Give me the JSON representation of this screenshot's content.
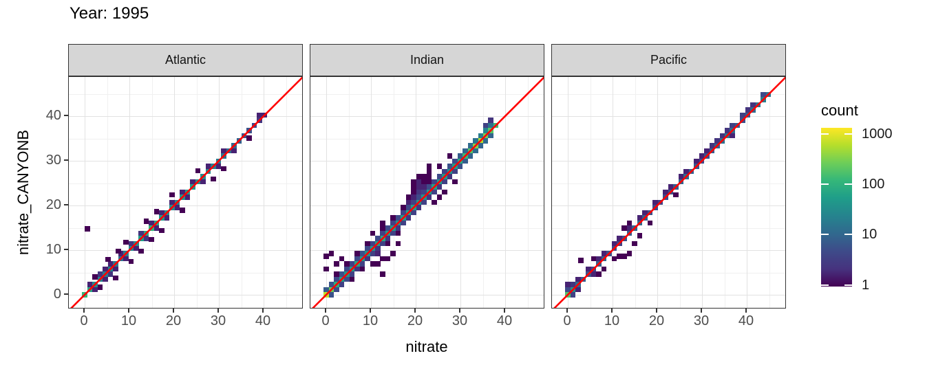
{
  "title": "Year: 1995",
  "axes": {
    "x_label": "nitrate",
    "y_label": "nitrate_CANYONB",
    "x_ticks": [
      0,
      10,
      20,
      30,
      40
    ],
    "y_ticks": [
      0,
      10,
      20,
      30,
      40
    ],
    "minor_ticks": [
      5,
      15,
      25,
      35,
      45
    ]
  },
  "legend": {
    "title": "count",
    "tick_labels": [
      "1000",
      "100",
      "10",
      "1"
    ],
    "tick_values": [
      1000,
      100,
      10,
      1
    ]
  },
  "colors": {
    "reference_line": "#ff0000",
    "strip_bg": "#d6d6d6",
    "panel_border": "#333333",
    "grid_major": "#e2e2e2",
    "grid_minor": "#f0f0f0",
    "axis_text": "#4d4d4d",
    "viridis": [
      "#440154",
      "#482878",
      "#3e4a89",
      "#31688e",
      "#26828e",
      "#1f9e89",
      "#35b779",
      "#6ece58",
      "#b5de2b",
      "#fde725"
    ]
  },
  "chart_data": {
    "type": "heatmap",
    "subtype": "geom_bin2d faceted scatter of nitrate vs nitrate_CANYONB with y=x reference line",
    "title": "Year: 1995",
    "xlabel": "nitrate",
    "ylabel": "nitrate_CANYONB",
    "x_range": [
      -3.5,
      48.9
    ],
    "y_range": [
      -3.2,
      48.6
    ],
    "binwidth": 1.15,
    "count_scale": {
      "type": "log10",
      "domain": [
        1,
        1350
      ],
      "legend_ticks": [
        1,
        10,
        100,
        1000
      ]
    },
    "reference_line": {
      "type": "y=x",
      "color": "#ff0000"
    },
    "facets": [
      {
        "label": "Atlantic",
        "diagonal": {
          "start": 0,
          "step": 1.15,
          "counts": [
            120,
            70,
            35,
            25,
            20,
            28,
            18,
            14,
            22,
            28,
            35,
            55,
            85,
            110,
            75,
            48,
            38,
            32,
            30,
            42,
            55,
            48,
            40,
            34,
            28,
            24,
            20,
            16,
            13,
            11,
            9,
            7,
            6,
            5,
            3,
            2
          ]
        },
        "extra_bins": [
          [
            1.15,
            2.3,
            2
          ],
          [
            2.3,
            1.15,
            2
          ],
          [
            3.45,
            4.6,
            3
          ],
          [
            4.6,
            3.45,
            2
          ],
          [
            4.6,
            5.75,
            2
          ],
          [
            5.75,
            4.6,
            3
          ],
          [
            5.75,
            6.9,
            2
          ],
          [
            6.9,
            5.75,
            2
          ],
          [
            8.05,
            9.2,
            2
          ],
          [
            9.2,
            8.05,
            2
          ],
          [
            10.35,
            11.5,
            3
          ],
          [
            11.5,
            10.35,
            2
          ],
          [
            12.65,
            13.8,
            3
          ],
          [
            13.8,
            12.65,
            3
          ],
          [
            14.95,
            16.1,
            2
          ],
          [
            16.1,
            14.95,
            2
          ],
          [
            17.25,
            18.4,
            2
          ],
          [
            18.4,
            17.25,
            2
          ],
          [
            19.55,
            20.7,
            2
          ],
          [
            20.7,
            19.55,
            2
          ],
          [
            21.85,
            23,
            2
          ],
          [
            23,
            21.85,
            2
          ],
          [
            24.15,
            25.3,
            2
          ],
          [
            26.45,
            25.3,
            2
          ],
          [
            27.6,
            28.75,
            2
          ],
          [
            29.9,
            28.75,
            2
          ],
          [
            31.05,
            32.2,
            2
          ],
          [
            33.35,
            32.2,
            2
          ],
          [
            39.1,
            40.25,
            2
          ],
          [
            0.6,
            14.8,
            1
          ],
          [
            5.2,
            7.9,
            1
          ],
          [
            3.45,
            1.7,
            1
          ],
          [
            6.9,
            3.8,
            1
          ],
          [
            10.35,
            7.5,
            1
          ],
          [
            9.2,
            11.8,
            1
          ],
          [
            13.8,
            16.5,
            1
          ],
          [
            14.95,
            12.4,
            1
          ],
          [
            16.1,
            18.6,
            1
          ],
          [
            19.55,
            22.4,
            1
          ],
          [
            21.85,
            18.9,
            1
          ],
          [
            25.3,
            27.8,
            1
          ],
          [
            28.75,
            25.9,
            1
          ],
          [
            31.05,
            28.2,
            1
          ],
          [
            36.8,
            35.1,
            1
          ],
          [
            2.3,
            4.0,
            1
          ],
          [
            7.5,
            9.8,
            1
          ],
          [
            12.65,
            9.8,
            1
          ],
          [
            17.25,
            14.4,
            1
          ]
        ]
      },
      {
        "label": "Indian",
        "diagonal": {
          "start": 0,
          "step": 1.15,
          "counts": [
            700,
            260,
            90,
            60,
            45,
            55,
            70,
            50,
            40,
            45,
            60,
            75,
            55,
            45,
            40,
            50,
            65,
            55,
            45,
            40,
            50,
            60,
            55,
            45,
            40,
            55,
            90,
            130,
            200,
            350,
            600,
            300,
            200,
            140
          ]
        },
        "extra_bins": [
          [
            0,
            1.15,
            8
          ],
          [
            1.15,
            2.3,
            6
          ],
          [
            2.3,
            3.45,
            5
          ],
          [
            3.45,
            4.6,
            6
          ],
          [
            4.6,
            5.75,
            5
          ],
          [
            5.75,
            6.9,
            4
          ],
          [
            6.9,
            8.05,
            5
          ],
          [
            8.05,
            9.2,
            6
          ],
          [
            9.2,
            10.35,
            5
          ],
          [
            10.35,
            11.5,
            4
          ],
          [
            11.5,
            12.65,
            5
          ],
          [
            12.65,
            13.8,
            4
          ],
          [
            13.8,
            14.95,
            5
          ],
          [
            14.95,
            16.1,
            4
          ],
          [
            16.1,
            17.25,
            5
          ],
          [
            17.25,
            18.4,
            4
          ],
          [
            18.4,
            19.55,
            5
          ],
          [
            19.55,
            20.7,
            4
          ],
          [
            20.7,
            21.85,
            5
          ],
          [
            21.85,
            23,
            4
          ],
          [
            23,
            24.15,
            5
          ],
          [
            24.15,
            25.3,
            4
          ],
          [
            25.3,
            26.45,
            5
          ],
          [
            26.45,
            27.6,
            4
          ],
          [
            27.6,
            28.75,
            6
          ],
          [
            28.75,
            29.9,
            5
          ],
          [
            29.9,
            31.05,
            8
          ],
          [
            31.05,
            32.2,
            10
          ],
          [
            32.2,
            33.35,
            12
          ],
          [
            33.35,
            34.5,
            15
          ],
          [
            34.5,
            35.65,
            20
          ],
          [
            35.65,
            36.8,
            25
          ],
          [
            36.8,
            37.95,
            15
          ],
          [
            1.15,
            0,
            6
          ],
          [
            2.3,
            1.15,
            5
          ],
          [
            3.45,
            2.3,
            4
          ],
          [
            4.6,
            3.45,
            5
          ],
          [
            5.75,
            4.6,
            4
          ],
          [
            6.9,
            5.75,
            3
          ],
          [
            8.05,
            6.9,
            4
          ],
          [
            9.2,
            8.05,
            3
          ],
          [
            10.35,
            9.2,
            4
          ],
          [
            11.5,
            10.35,
            3
          ],
          [
            12.65,
            11.5,
            4
          ],
          [
            13.8,
            12.65,
            3
          ],
          [
            14.95,
            13.8,
            4
          ],
          [
            16.1,
            14.95,
            3
          ],
          [
            17.25,
            16.1,
            4
          ],
          [
            18.4,
            17.25,
            3
          ],
          [
            19.55,
            18.4,
            4
          ],
          [
            20.7,
            19.55,
            3
          ],
          [
            21.85,
            20.7,
            4
          ],
          [
            23,
            21.85,
            3
          ],
          [
            24.15,
            23,
            4
          ],
          [
            25.3,
            24.15,
            3
          ],
          [
            26.45,
            25.3,
            4
          ],
          [
            27.6,
            26.45,
            3
          ],
          [
            28.75,
            27.6,
            4
          ],
          [
            29.9,
            28.75,
            6
          ],
          [
            31.05,
            29.9,
            8
          ],
          [
            32.2,
            31.05,
            10
          ],
          [
            33.35,
            32.2,
            12
          ],
          [
            34.5,
            33.35,
            10
          ],
          [
            35.65,
            34.5,
            12
          ],
          [
            36.8,
            35.65,
            10
          ],
          [
            2.3,
            4.6,
            1
          ],
          [
            4.6,
            6.9,
            1
          ],
          [
            6.9,
            9.2,
            1
          ],
          [
            9.2,
            11.5,
            1
          ],
          [
            5.75,
            3.45,
            1
          ],
          [
            8.05,
            5.75,
            1
          ],
          [
            11.5,
            9.2,
            2
          ],
          [
            13.8,
            11.5,
            1
          ],
          [
            16.1,
            13.8,
            1
          ],
          [
            12.65,
            14.95,
            1
          ],
          [
            14.95,
            17.25,
            1
          ],
          [
            17.25,
            19.55,
            1
          ],
          [
            18.4,
            20.7,
            2
          ],
          [
            19.55,
            21.85,
            2
          ],
          [
            19.55,
            23,
            1
          ],
          [
            20.7,
            23,
            3
          ],
          [
            20.7,
            24.15,
            2
          ],
          [
            21.85,
            24.15,
            2
          ],
          [
            21.85,
            25.3,
            1
          ],
          [
            23,
            25.3,
            1
          ],
          [
            19.55,
            24.15,
            1
          ],
          [
            18.4,
            21.85,
            1
          ],
          [
            23,
            26.45,
            1
          ],
          [
            20.7,
            25.3,
            2
          ],
          [
            21.85,
            26.45,
            1
          ],
          [
            20.7,
            26.45,
            1
          ],
          [
            19.55,
            25.3,
            1
          ],
          [
            23,
            27.6,
            1
          ],
          [
            10.35,
            6.9,
            1
          ],
          [
            12.65,
            4.6,
            1
          ],
          [
            13.8,
            8.05,
            1
          ],
          [
            14.95,
            9.2,
            1
          ],
          [
            16.1,
            11.5,
            1
          ],
          [
            12.65,
            8.05,
            1
          ],
          [
            11.5,
            6.9,
            1
          ],
          [
            24.15,
            20.7,
            1
          ],
          [
            26.45,
            23,
            1
          ],
          [
            28.75,
            25.3,
            1
          ],
          [
            25.3,
            21.85,
            1
          ],
          [
            0,
            8.6,
            1
          ],
          [
            1.15,
            9.2,
            1
          ],
          [
            0,
            5.75,
            1
          ],
          [
            2.3,
            6.9,
            1
          ],
          [
            3.45,
            8.05,
            1
          ],
          [
            12.65,
            16.1,
            1
          ],
          [
            10.35,
            13.8,
            1
          ],
          [
            23,
            28.75,
            1
          ],
          [
            25.3,
            28.75,
            1
          ],
          [
            27.6,
            31.05,
            1
          ],
          [
            35.65,
            37.95,
            4
          ],
          [
            36.8,
            39.1,
            3
          ]
        ]
      },
      {
        "label": "Pacific",
        "diagonal": {
          "start": 0,
          "step": 1.15,
          "counts": [
            180,
            40,
            12,
            8,
            6,
            5,
            8,
            10,
            6,
            5,
            4,
            6,
            8,
            10,
            12,
            8,
            6,
            5,
            4,
            5,
            6,
            8,
            10,
            12,
            9,
            7,
            5,
            6,
            8,
            10,
            14,
            18,
            12,
            8,
            6,
            8,
            12,
            16,
            22,
            15
          ]
        },
        "extra_bins": [
          [
            0,
            1.15,
            5
          ],
          [
            1.15,
            0,
            4
          ],
          [
            1.15,
            2.3,
            3
          ],
          [
            2.3,
            1.15,
            2
          ],
          [
            2.3,
            3.45,
            2
          ],
          [
            4.6,
            5.75,
            2
          ],
          [
            5.75,
            4.6,
            2
          ],
          [
            6.9,
            8.05,
            2
          ],
          [
            8.05,
            9.2,
            2
          ],
          [
            10.35,
            11.5,
            2
          ],
          [
            11.5,
            12.65,
            2
          ],
          [
            13.8,
            14.95,
            2
          ],
          [
            16.1,
            17.25,
            2
          ],
          [
            17.25,
            18.4,
            2
          ],
          [
            19.55,
            20.7,
            2
          ],
          [
            21.85,
            23,
            2
          ],
          [
            23,
            24.15,
            2
          ],
          [
            25.3,
            26.45,
            2
          ],
          [
            26.45,
            27.6,
            2
          ],
          [
            28.75,
            29.9,
            2
          ],
          [
            29.9,
            31.05,
            2
          ],
          [
            31.05,
            32.2,
            2
          ],
          [
            32.2,
            33.35,
            3
          ],
          [
            34.5,
            35.65,
            3
          ],
          [
            35.65,
            36.8,
            3
          ],
          [
            36.8,
            37.95,
            4
          ],
          [
            39.1,
            40.25,
            4
          ],
          [
            40.25,
            41.4,
            3
          ],
          [
            41.4,
            42.55,
            3
          ],
          [
            43.7,
            44.85,
            5
          ],
          [
            2.9,
            7.7,
            1
          ],
          [
            10.35,
            8.05,
            1
          ],
          [
            11.5,
            8.6,
            1
          ],
          [
            12.65,
            8.6,
            1
          ],
          [
            13.8,
            9.2,
            1
          ],
          [
            14.95,
            11.5,
            1
          ],
          [
            5.75,
            8.05,
            1
          ],
          [
            8.05,
            5.75,
            1
          ],
          [
            6.9,
            4.6,
            1
          ],
          [
            18.4,
            16.1,
            1
          ],
          [
            24.15,
            22.4,
            1
          ],
          [
            33.35,
            34.5,
            3
          ],
          [
            36.8,
            35.65,
            2
          ],
          [
            13.8,
            16.1,
            1
          ],
          [
            12.65,
            14.95,
            1
          ],
          [
            0,
            2.3,
            2
          ],
          [
            16.1,
            13.2,
            1
          ]
        ]
      }
    ]
  }
}
